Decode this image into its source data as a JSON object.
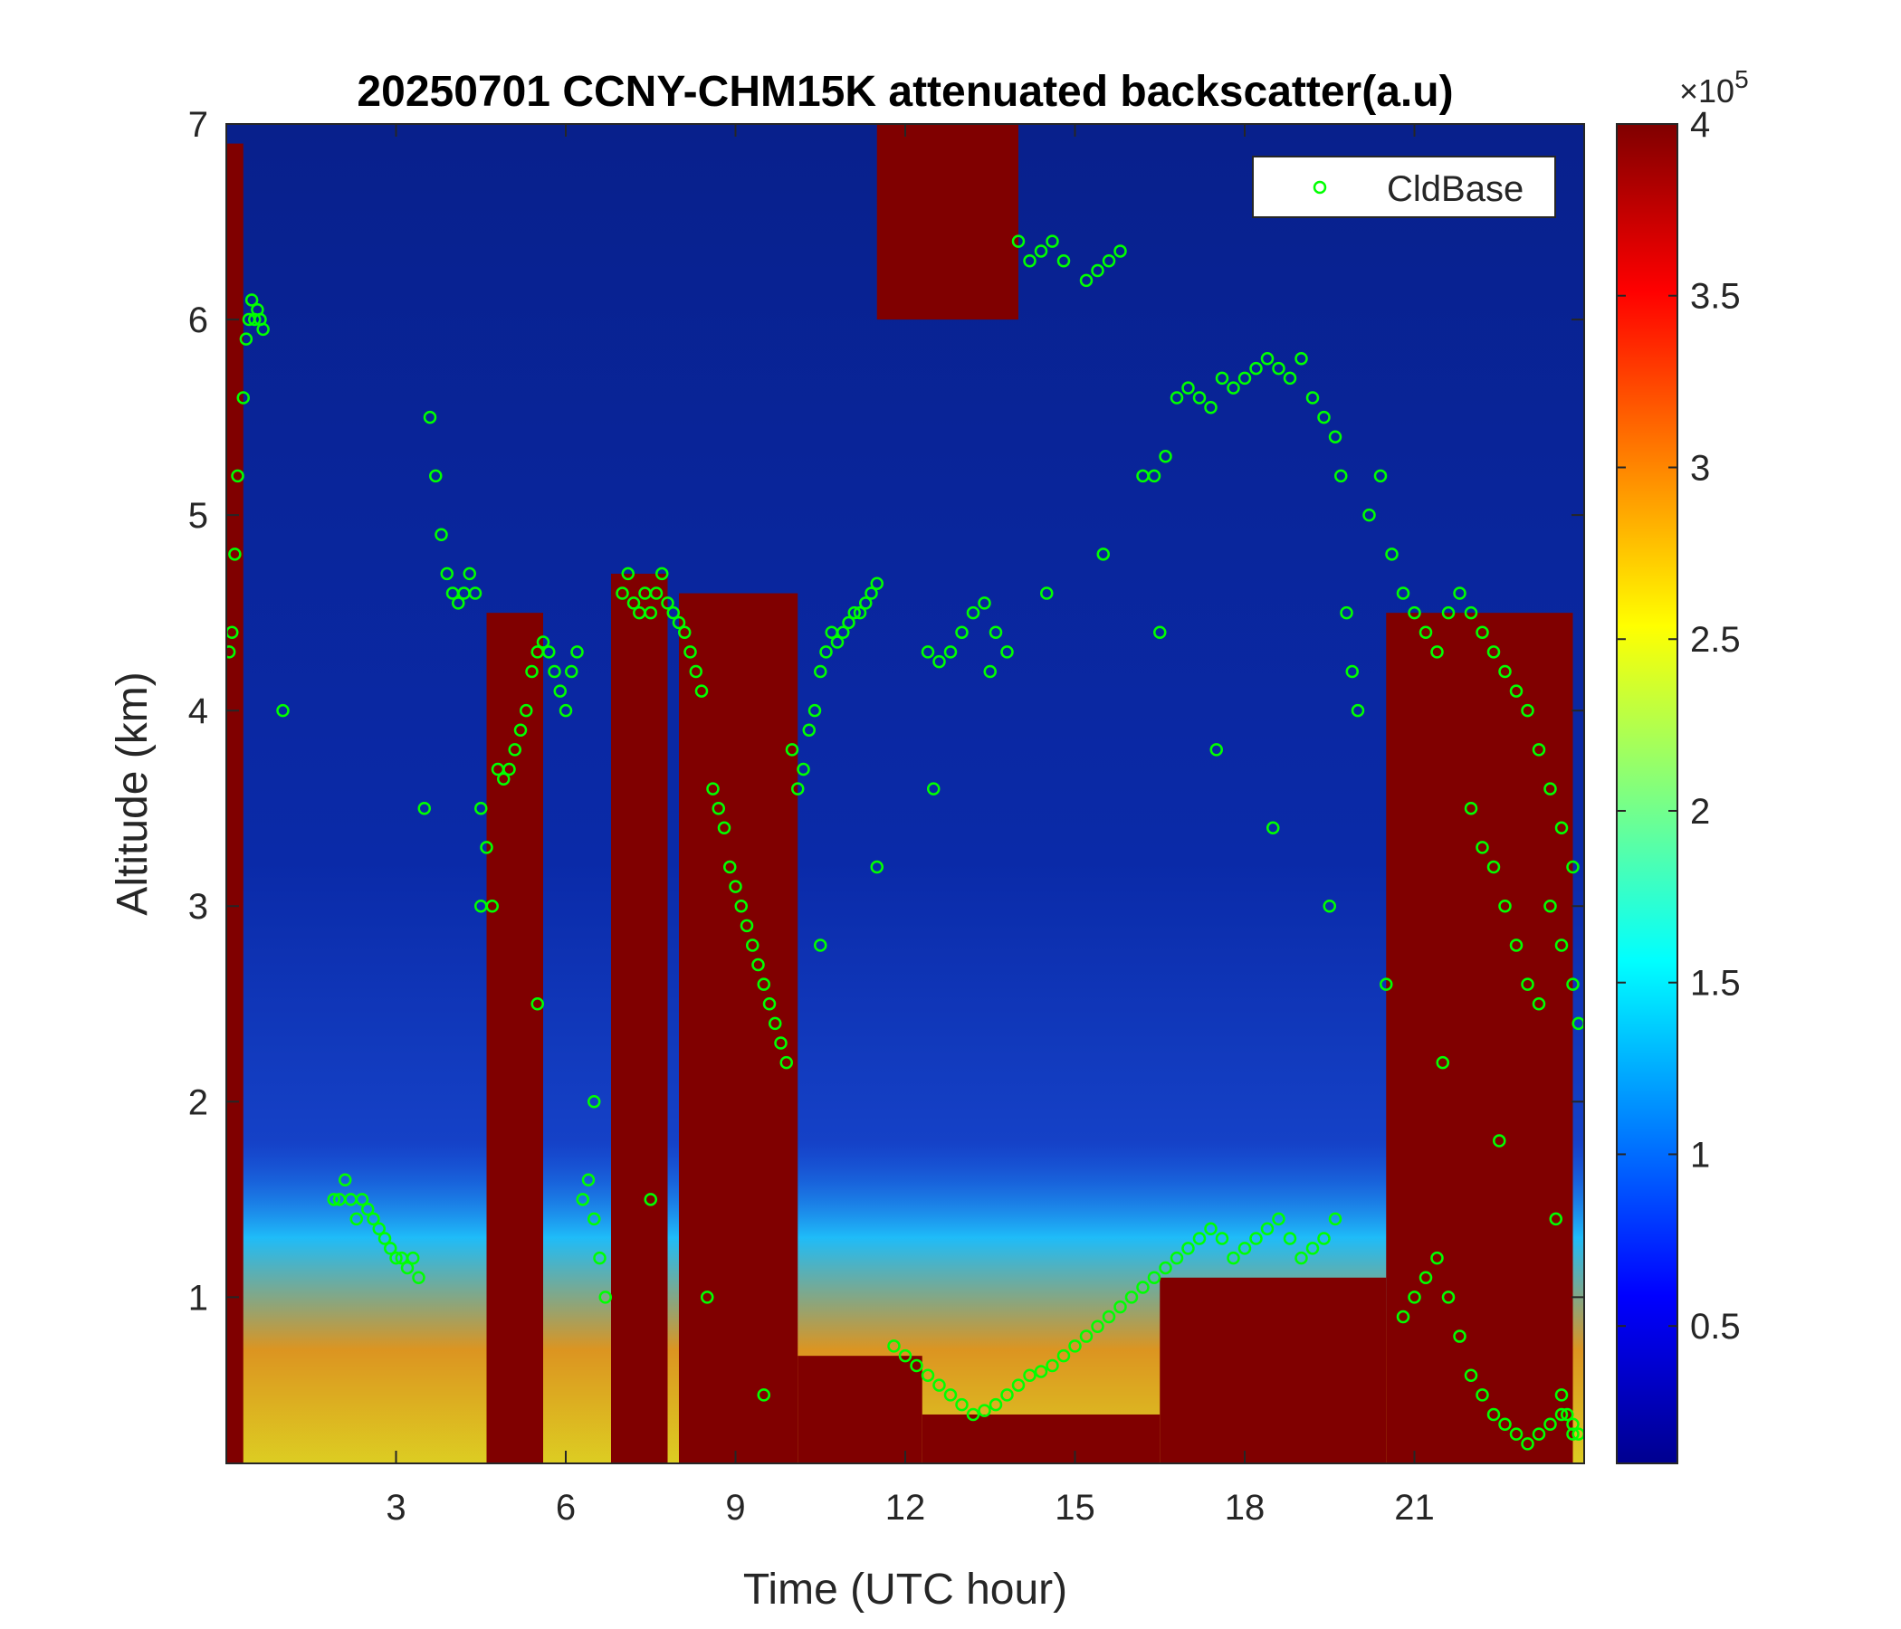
{
  "chart_data": {
    "type": "heatmap",
    "title": "20250701 CCNY-CHM15K attenuated backscatter(a.u)",
    "xlabel": "Time (UTC hour)",
    "ylabel": "Altitude (km)",
    "xlim": [
      0,
      24
    ],
    "ylim": [
      0.15,
      7
    ],
    "xticks": [
      3,
      6,
      9,
      12,
      15,
      18,
      21
    ],
    "xtick_labels": [
      "3",
      "6",
      "9",
      "12",
      "15",
      "18",
      "21"
    ],
    "yticks": [
      1,
      2,
      3,
      4,
      5,
      6,
      7
    ],
    "ytick_labels": [
      "1",
      "2",
      "3",
      "4",
      "5",
      "6",
      "7"
    ],
    "colorbar": {
      "colormap": "jet",
      "clim": [
        0.1,
        4
      ],
      "multiplier": "×10^5",
      "multiplier_base": "×10",
      "multiplier_exp": "5",
      "ticks": [
        0.5,
        1,
        1.5,
        2,
        2.5,
        3,
        3.5,
        4
      ],
      "tick_labels": [
        "0.5",
        "1",
        "1.5",
        "2",
        "2.5",
        "3",
        "3.5",
        "4"
      ]
    },
    "legend": {
      "placement": "top-right",
      "entries": [
        {
          "label": "CldBase",
          "marker": "circle",
          "color": "#00ff00"
        }
      ]
    },
    "saturated_layers": [
      {
        "t0": 0.0,
        "t1": 0.3,
        "h0": 0.15,
        "h1": 6.9
      },
      {
        "t0": 4.6,
        "t1": 5.6,
        "h0": 0.15,
        "h1": 4.5
      },
      {
        "t0": 6.8,
        "t1": 7.8,
        "h0": 0.15,
        "h1": 4.7
      },
      {
        "t0": 8.0,
        "t1": 10.1,
        "h0": 0.15,
        "h1": 4.6
      },
      {
        "t0": 10.1,
        "t1": 12.3,
        "h0": 0.15,
        "h1": 0.7
      },
      {
        "t0": 11.5,
        "t1": 14.0,
        "h0": 6.0,
        "h1": 7.0
      },
      {
        "t0": 12.3,
        "t1": 16.5,
        "h0": 0.15,
        "h1": 0.4
      },
      {
        "t0": 16.5,
        "t1": 20.5,
        "h0": 0.15,
        "h1": 1.1
      },
      {
        "t0": 20.5,
        "t1": 23.8,
        "h0": 0.15,
        "h1": 4.5
      }
    ],
    "series": [
      {
        "name": "CldBase",
        "x": [
          0.05,
          0.1,
          0.15,
          0.2,
          0.3,
          0.35,
          0.4,
          0.45,
          0.5,
          0.55,
          0.6,
          0.65,
          1.9,
          2.0,
          2.1,
          2.2,
          2.3,
          2.4,
          2.5,
          2.6,
          2.7,
          2.8,
          2.9,
          3.0,
          3.1,
          3.2,
          3.3,
          3.4,
          3.6,
          3.7,
          3.8,
          3.9,
          4.0,
          4.1,
          4.2,
          4.3,
          4.4,
          4.5,
          4.6,
          4.7,
          4.8,
          4.9,
          5.0,
          5.1,
          5.2,
          5.3,
          5.4,
          5.5,
          5.6,
          5.7,
          5.8,
          5.9,
          6.0,
          6.1,
          6.2,
          6.3,
          6.4,
          6.5,
          6.6,
          6.7,
          7.0,
          7.1,
          7.2,
          7.3,
          7.4,
          7.5,
          7.6,
          7.7,
          7.8,
          7.9,
          8.0,
          8.1,
          8.2,
          8.3,
          8.4,
          8.6,
          8.7,
          8.8,
          8.9,
          9.0,
          9.1,
          9.2,
          9.3,
          9.4,
          9.5,
          9.6,
          9.7,
          9.8,
          9.9,
          10.0,
          10.1,
          10.2,
          10.3,
          10.4,
          10.5,
          10.6,
          10.7,
          10.8,
          10.9,
          11.0,
          11.1,
          11.2,
          11.3,
          11.4,
          11.5,
          11.8,
          12.0,
          12.2,
          12.4,
          12.6,
          12.8,
          13.0,
          13.2,
          13.4,
          13.6,
          13.8,
          14.0,
          14.2,
          14.4,
          14.6,
          14.8,
          15.0,
          15.2,
          15.4,
          15.6,
          15.8,
          16.0,
          16.2,
          16.4,
          16.6,
          16.8,
          17.0,
          17.2,
          17.4,
          17.6,
          17.8,
          18.0,
          18.2,
          18.4,
          18.6,
          18.8,
          19.0,
          19.2,
          19.4,
          19.6,
          12.4,
          12.6,
          12.8,
          13.0,
          13.2,
          13.4,
          13.6,
          13.8,
          14.0,
          14.2,
          14.4,
          14.6,
          14.8,
          15.2,
          15.4,
          15.6,
          15.8,
          16.2,
          16.4,
          16.6,
          16.8,
          17.0,
          17.2,
          17.4,
          17.6,
          17.8,
          18.0,
          18.2,
          18.4,
          18.6,
          18.8,
          19.0,
          19.2,
          19.4,
          19.6,
          19.7,
          19.8,
          19.9,
          20.0,
          20.2,
          20.4,
          20.6,
          20.8,
          21.0,
          21.2,
          21.4,
          21.6,
          21.8,
          22.0,
          22.2,
          22.4,
          22.6,
          22.8,
          23.0,
          23.2,
          23.4,
          23.6,
          23.8,
          22.0,
          22.2,
          22.4,
          22.6,
          22.8,
          23.0,
          23.2,
          23.4,
          23.6,
          23.8,
          23.9,
          20.8,
          21.0,
          21.2,
          21.4,
          21.6,
          21.8,
          22.0,
          22.2,
          22.4,
          22.6,
          22.8,
          23.0,
          23.2,
          23.4,
          23.6,
          23.8,
          1.0,
          3.5,
          4.5,
          5.5,
          6.5,
          7.5,
          8.5,
          9.5,
          10.5,
          11.5,
          12.5,
          13.5,
          14.5,
          15.5,
          16.5,
          17.5,
          18.5,
          19.5,
          20.5,
          21.5,
          22.5,
          23.5,
          23.6,
          23.7,
          23.8,
          23.9
        ],
        "y": [
          4.3,
          4.4,
          4.8,
          5.2,
          5.6,
          5.9,
          6.0,
          6.1,
          6.0,
          6.05,
          6.0,
          5.95,
          1.5,
          1.5,
          1.6,
          1.5,
          1.4,
          1.5,
          1.45,
          1.4,
          1.35,
          1.3,
          1.25,
          1.2,
          1.2,
          1.15,
          1.2,
          1.1,
          5.5,
          5.2,
          4.9,
          4.7,
          4.6,
          4.55,
          4.6,
          4.7,
          4.6,
          3.5,
          3.3,
          3.0,
          3.7,
          3.65,
          3.7,
          3.8,
          3.9,
          4.0,
          4.2,
          4.3,
          4.35,
          4.3,
          4.2,
          4.1,
          4.0,
          4.2,
          4.3,
          1.5,
          1.6,
          1.4,
          1.2,
          1.0,
          4.6,
          4.7,
          4.55,
          4.5,
          4.6,
          4.5,
          4.6,
          4.7,
          4.55,
          4.5,
          4.45,
          4.4,
          4.3,
          4.2,
          4.1,
          3.6,
          3.5,
          3.4,
          3.2,
          3.1,
          3.0,
          2.9,
          2.8,
          2.7,
          2.6,
          2.5,
          2.4,
          2.3,
          2.2,
          3.8,
          3.6,
          3.7,
          3.9,
          4.0,
          4.2,
          4.3,
          4.4,
          4.35,
          4.4,
          4.45,
          4.5,
          4.5,
          4.55,
          4.6,
          4.65,
          0.75,
          0.7,
          0.65,
          0.6,
          0.55,
          0.5,
          0.45,
          0.4,
          0.42,
          0.45,
          0.5,
          0.55,
          0.6,
          0.62,
          0.65,
          0.7,
          0.75,
          0.8,
          0.85,
          0.9,
          0.95,
          1.0,
          1.05,
          1.1,
          1.15,
          1.2,
          1.25,
          1.3,
          1.35,
          1.3,
          1.2,
          1.25,
          1.3,
          1.35,
          1.4,
          1.3,
          1.2,
          1.25,
          1.3,
          1.4,
          4.3,
          4.25,
          4.3,
          4.4,
          4.5,
          4.55,
          4.4,
          4.3,
          6.4,
          6.3,
          6.35,
          6.4,
          6.3,
          6.2,
          6.25,
          6.3,
          6.35,
          5.2,
          5.2,
          5.3,
          5.6,
          5.65,
          5.6,
          5.55,
          5.7,
          5.65,
          5.7,
          5.75,
          5.8,
          5.75,
          5.7,
          5.8,
          5.6,
          5.5,
          5.4,
          5.2,
          4.5,
          4.2,
          4.0,
          5.0,
          5.2,
          4.8,
          4.6,
          4.5,
          4.4,
          4.3,
          4.5,
          4.6,
          4.5,
          4.4,
          4.3,
          4.2,
          4.1,
          4.0,
          3.8,
          3.6,
          3.4,
          3.2,
          3.5,
          3.3,
          3.2,
          3.0,
          2.8,
          2.6,
          2.5,
          3.0,
          2.8,
          2.6,
          2.4,
          0.9,
          1.0,
          1.1,
          1.2,
          1.0,
          0.8,
          0.6,
          0.5,
          0.4,
          0.35,
          0.3,
          0.25,
          0.3,
          0.35,
          0.4,
          0.3,
          4.0,
          3.5,
          3.0,
          2.5,
          2.0,
          1.5,
          1.0,
          0.5,
          2.8,
          3.2,
          3.6,
          4.2,
          4.6,
          4.8,
          4.4,
          3.8,
          3.4,
          3.0,
          2.6,
          2.2,
          1.8,
          1.4,
          0.5,
          0.4,
          0.35,
          0.3
        ]
      }
    ]
  }
}
